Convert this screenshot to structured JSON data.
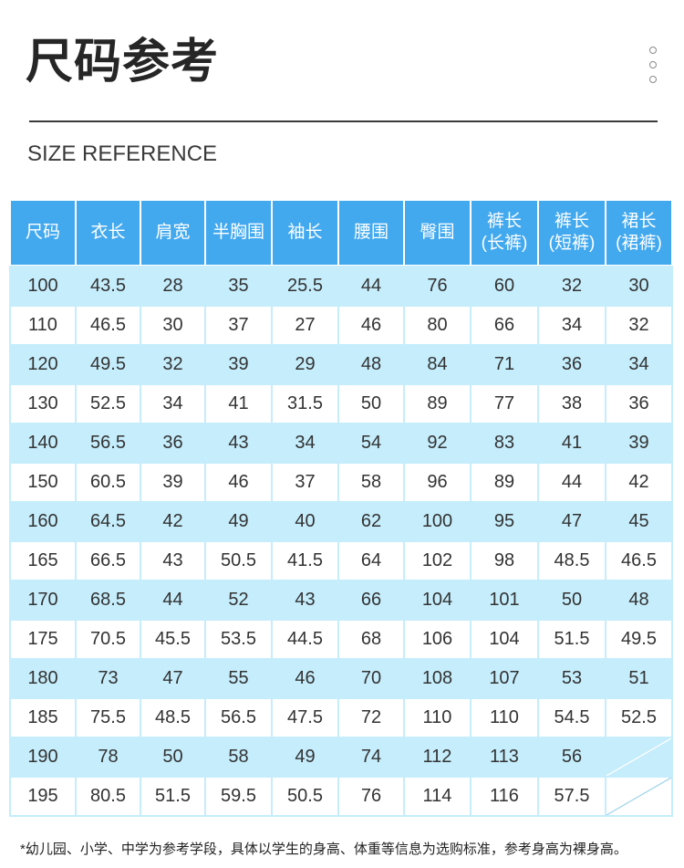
{
  "header": {
    "title": "尺码参考",
    "subtitle": "SIZE REFERENCE"
  },
  "colors": {
    "header_bg": "#43a9ef",
    "row_alt_bg": "#c5edfc",
    "grid_line": "#c5edfc",
    "text": "#333333",
    "title": "#262626",
    "rule": "#3a3a3a"
  },
  "icons": {
    "top_right": "three-dots-vertical-icon"
  },
  "table": {
    "columns": [
      [
        "尺码"
      ],
      [
        "衣长"
      ],
      [
        "肩宽"
      ],
      [
        "半胸围"
      ],
      [
        "袖长"
      ],
      [
        "腰围"
      ],
      [
        "臀围"
      ],
      [
        "裤长",
        "(长裤)"
      ],
      [
        "裤长",
        "(短裤)"
      ],
      [
        "裙长",
        "(裙裤)"
      ]
    ],
    "rows": [
      [
        "100",
        "43.5",
        "28",
        "35",
        "25.5",
        "44",
        "76",
        "60",
        "32",
        "30"
      ],
      [
        "110",
        "46.5",
        "30",
        "37",
        "27",
        "46",
        "80",
        "66",
        "34",
        "32"
      ],
      [
        "120",
        "49.5",
        "32",
        "39",
        "29",
        "48",
        "84",
        "71",
        "36",
        "34"
      ],
      [
        "130",
        "52.5",
        "34",
        "41",
        "31.5",
        "50",
        "89",
        "77",
        "38",
        "36"
      ],
      [
        "140",
        "56.5",
        "36",
        "43",
        "34",
        "54",
        "92",
        "83",
        "41",
        "39"
      ],
      [
        "150",
        "60.5",
        "39",
        "46",
        "37",
        "58",
        "96",
        "89",
        "44",
        "42"
      ],
      [
        "160",
        "64.5",
        "42",
        "49",
        "40",
        "62",
        "100",
        "95",
        "47",
        "45"
      ],
      [
        "165",
        "66.5",
        "43",
        "50.5",
        "41.5",
        "64",
        "102",
        "98",
        "48.5",
        "46.5"
      ],
      [
        "170",
        "68.5",
        "44",
        "52",
        "43",
        "66",
        "104",
        "101",
        "50",
        "48"
      ],
      [
        "175",
        "70.5",
        "45.5",
        "53.5",
        "44.5",
        "68",
        "106",
        "104",
        "51.5",
        "49.5"
      ],
      [
        "180",
        "73",
        "47",
        "55",
        "46",
        "70",
        "108",
        "107",
        "53",
        "51"
      ],
      [
        "185",
        "75.5",
        "48.5",
        "56.5",
        "47.5",
        "72",
        "110",
        "110",
        "54.5",
        "52.5"
      ],
      [
        "190",
        "78",
        "50",
        "58",
        "49",
        "74",
        "112",
        "113",
        "56",
        null
      ],
      [
        "195",
        "80.5",
        "51.5",
        "59.5",
        "50.5",
        "76",
        "114",
        "116",
        "57.5",
        null
      ]
    ]
  },
  "footnote": "*幼儿园、小学、中学为参考学段，具体以学生的身高、体重等信息为选购标准，参考身高为裸身高。"
}
